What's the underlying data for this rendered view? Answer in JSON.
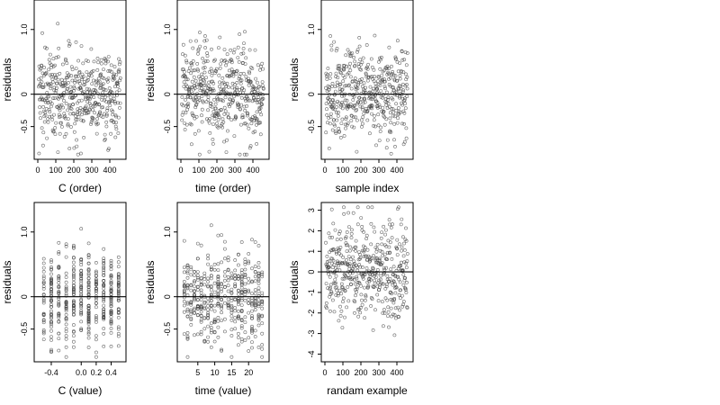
{
  "chart_data": [
    {
      "type": "scatter",
      "xlabel": "C (order)",
      "ylabel": "residuals",
      "xlim": [
        0,
        470
      ],
      "ylim": [
        -0.95,
        1.4
      ],
      "xticks": [
        0,
        100,
        200,
        300,
        400
      ],
      "xtick_labels": [
        "0",
        "100",
        "200",
        "300",
        "400"
      ],
      "yticks": [
        -0.5,
        0,
        1.0
      ],
      "ytick_labels": [
        "-0.5",
        "0",
        "1.0"
      ],
      "hline": 0,
      "n_points": 460,
      "point_color": "#444444"
    },
    {
      "type": "scatter",
      "xlabel": "time (order)",
      "ylabel": "residuals",
      "xlim": [
        0,
        470
      ],
      "ylim": [
        -0.95,
        1.4
      ],
      "xticks": [
        0,
        100,
        200,
        300,
        400
      ],
      "xtick_labels": [
        "0",
        "100",
        "200",
        "300",
        "400"
      ],
      "yticks": [
        -0.5,
        0,
        1.0
      ],
      "ytick_labels": [
        "-0.5",
        "0",
        "1.0"
      ],
      "hline": 0,
      "n_points": 460,
      "point_color": "#444444"
    },
    {
      "type": "scatter",
      "xlabel": "sample index",
      "ylabel": "residuals",
      "xlim": [
        0,
        470
      ],
      "ylim": [
        -0.95,
        1.4
      ],
      "xticks": [
        0,
        100,
        200,
        300,
        400
      ],
      "xtick_labels": [
        "0",
        "100",
        "200",
        "300",
        "400"
      ],
      "yticks": [
        -0.5,
        0,
        1.0
      ],
      "ytick_labels": [
        "-0.5",
        "0",
        "1.0"
      ],
      "hline": 0,
      "n_points": 460,
      "point_color": "#444444"
    },
    {
      "type": "scatter",
      "xlabel": "C (value)",
      "ylabel": "residuals",
      "xlim": [
        -0.58,
        0.55
      ],
      "ylim": [
        -0.95,
        1.4
      ],
      "xticks": [
        -0.4,
        0.0,
        0.2,
        0.4
      ],
      "xtick_labels": [
        "-0.4",
        "0.0",
        "0.2",
        "0.4"
      ],
      "yticks": [
        -0.5,
        0,
        1.0
      ],
      "ytick_labels": [
        "-0.5",
        "0",
        "1.0"
      ],
      "x_levels": [
        -0.5,
        -0.4,
        -0.3,
        -0.2,
        -0.1,
        0.0,
        0.1,
        0.2,
        0.3,
        0.4,
        0.5
      ],
      "hline": 0,
      "n_points": 460,
      "point_color": "#444444"
    },
    {
      "type": "scatter",
      "xlabel": "time (value)",
      "ylabel": "residuals",
      "xlim": [
        0,
        25
      ],
      "ylim": [
        -0.95,
        1.4
      ],
      "xticks": [
        5,
        10,
        15,
        20
      ],
      "xtick_labels": [
        "5",
        "10",
        "15",
        "20"
      ],
      "yticks": [
        -0.5,
        0,
        1.0
      ],
      "ytick_labels": [
        "-0.5",
        "0",
        "1.0"
      ],
      "x_levels": [
        1,
        2,
        3,
        4,
        5,
        6,
        7,
        8,
        9,
        10,
        11,
        12,
        13,
        14,
        15,
        16,
        17,
        18,
        19,
        20,
        21,
        22,
        23,
        24
      ],
      "hline": 0,
      "n_points": 460,
      "point_color": "#444444"
    },
    {
      "type": "scatter",
      "xlabel": "randam example",
      "ylabel": "residuals",
      "xlim": [
        0,
        470
      ],
      "ylim": [
        -4.2,
        3.2
      ],
      "xticks": [
        0,
        100,
        200,
        300,
        400
      ],
      "xtick_labels": [
        "0",
        "100",
        "200",
        "300",
        "400"
      ],
      "yticks": [
        -4,
        -3,
        -2,
        -1,
        0,
        1,
        2,
        3
      ],
      "ytick_labels": [
        "-4",
        "-3",
        "-2",
        "-1",
        "0",
        "1",
        "2",
        "3"
      ],
      "hline": 0,
      "n_points": 460,
      "point_color": "#444444"
    }
  ]
}
